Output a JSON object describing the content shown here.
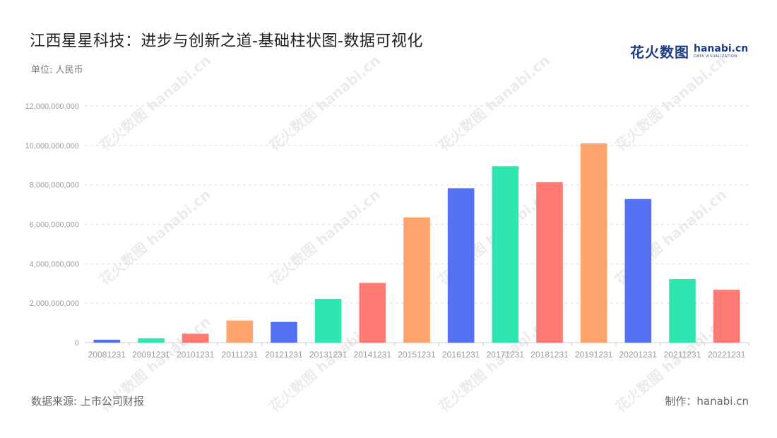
{
  "header": {
    "title": "江西星星科技：进步与创新之道-基础柱状图-数据可视化",
    "unit": "单位: 人民币"
  },
  "logo": {
    "cn": "花火数图",
    "en": "hanabi.cn",
    "sub": "DATA VISUALIZATION"
  },
  "watermark": "花火数图 hanabi.cn",
  "footer": {
    "source": "数据来源: 上市公司财报",
    "maker": "制作：hanabi.cn"
  },
  "colors": {
    "palette": [
      "#5470f5",
      "#2ee6b0",
      "#ff7a72",
      "#ffa36e"
    ],
    "grid": "#dddddd",
    "axis_text": "#999999"
  },
  "chart_data": {
    "type": "bar",
    "categories": [
      "20081231",
      "20091231",
      "20101231",
      "20111231",
      "20121231",
      "20131231",
      "20141231",
      "20151231",
      "20161231",
      "20171231",
      "20181231",
      "20191231",
      "20201231",
      "20211231",
      "20221231"
    ],
    "values": [
      150000000,
      220000000,
      450000000,
      1120000000,
      1050000000,
      2220000000,
      3030000000,
      6350000000,
      7830000000,
      8950000000,
      8130000000,
      10100000000,
      7280000000,
      3220000000,
      2680000000
    ],
    "bar_colors": [
      "#5470f5",
      "#2ee6b0",
      "#ff7a72",
      "#ffa36e",
      "#5470f5",
      "#2ee6b0",
      "#ff7a72",
      "#ffa36e",
      "#5470f5",
      "#2ee6b0",
      "#ff7a72",
      "#ffa36e",
      "#5470f5",
      "#2ee6b0",
      "#ff7a72"
    ],
    "y_ticks": [
      "0",
      "2,000,000,000",
      "4,000,000,000",
      "6,000,000,000",
      "8,000,000,000",
      "10,000,000,000",
      "12,000,000,000"
    ],
    "ylim": [
      0,
      12000000000
    ],
    "grid": true,
    "title": "江西星星科技：进步与创新之道-基础柱状图-数据可视化",
    "xlabel": "",
    "ylabel": ""
  }
}
